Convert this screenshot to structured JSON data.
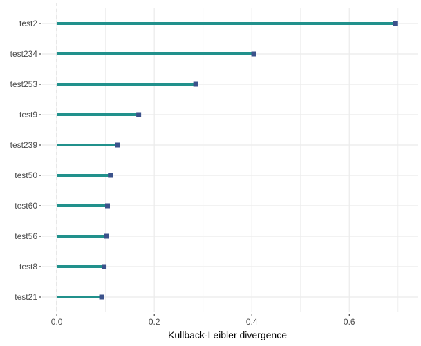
{
  "chart_data": {
    "type": "lollipop-bar",
    "title": "",
    "xlabel": "Kullback-Leibler divergence",
    "ylabel": "",
    "xlim": [
      -0.03,
      0.74
    ],
    "x_ticks": [
      0.0,
      0.2,
      0.4,
      0.6
    ],
    "x_tick_labels": [
      "0.0",
      "0.2",
      "0.4",
      "0.6"
    ],
    "reference_line_x": 0.0,
    "categories": [
      "test2",
      "test234",
      "test253",
      "test9",
      "test239",
      "test50",
      "test60",
      "test56",
      "test8",
      "test21"
    ],
    "values": [
      0.695,
      0.404,
      0.285,
      0.168,
      0.124,
      0.11,
      0.104,
      0.102,
      0.097,
      0.092
    ],
    "grid": true,
    "legend": "none",
    "colors": {
      "bar": "#21918c",
      "point": "#3b528b",
      "grid": "#ebebeb",
      "reference_line": "#cccccc",
      "tick_text": "#4d4d4d"
    }
  }
}
